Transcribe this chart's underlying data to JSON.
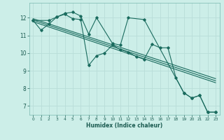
{
  "xlabel": "Humidex (Indice chaleur)",
  "bg_color": "#cceee8",
  "grid_color": "#b8ddd8",
  "line_color": "#1a6b5e",
  "xlim": [
    -0.5,
    23.5
  ],
  "ylim": [
    6.5,
    12.85
  ],
  "xticks": [
    0,
    1,
    2,
    3,
    4,
    5,
    6,
    7,
    8,
    9,
    10,
    11,
    12,
    13,
    14,
    15,
    16,
    17,
    18,
    19,
    20,
    21,
    22,
    23
  ],
  "yticks": [
    7,
    8,
    9,
    10,
    11,
    12
  ],
  "series1_x": [
    0,
    1,
    2,
    3,
    4,
    5,
    6,
    7,
    8,
    9,
    10,
    11,
    12,
    13,
    14,
    15,
    16,
    17,
    18,
    19,
    20,
    21,
    22,
    23
  ],
  "series1_y": [
    11.85,
    11.3,
    11.65,
    12.05,
    12.2,
    11.95,
    11.9,
    9.3,
    9.85,
    10.0,
    10.45,
    10.2,
    10.05,
    9.8,
    9.65,
    10.5,
    10.3,
    10.3,
    8.6,
    7.75,
    7.45,
    7.6,
    6.65,
    6.65
  ],
  "series2_x": [
    0,
    2,
    3,
    4,
    5,
    6,
    7,
    8,
    10,
    11,
    12,
    14,
    19,
    20,
    21,
    22,
    23
  ],
  "series2_y": [
    11.85,
    11.85,
    12.05,
    12.25,
    12.32,
    12.1,
    11.08,
    12.0,
    10.55,
    10.45,
    12.0,
    11.9,
    7.75,
    7.45,
    7.6,
    6.65,
    6.65
  ],
  "trend1_x": [
    0,
    23
  ],
  "trend1_y": [
    11.95,
    8.55
  ],
  "trend2_x": [
    0,
    23
  ],
  "trend2_y": [
    11.78,
    8.32
  ],
  "trend3_x": [
    0,
    23
  ],
  "trend3_y": [
    11.87,
    8.43
  ]
}
